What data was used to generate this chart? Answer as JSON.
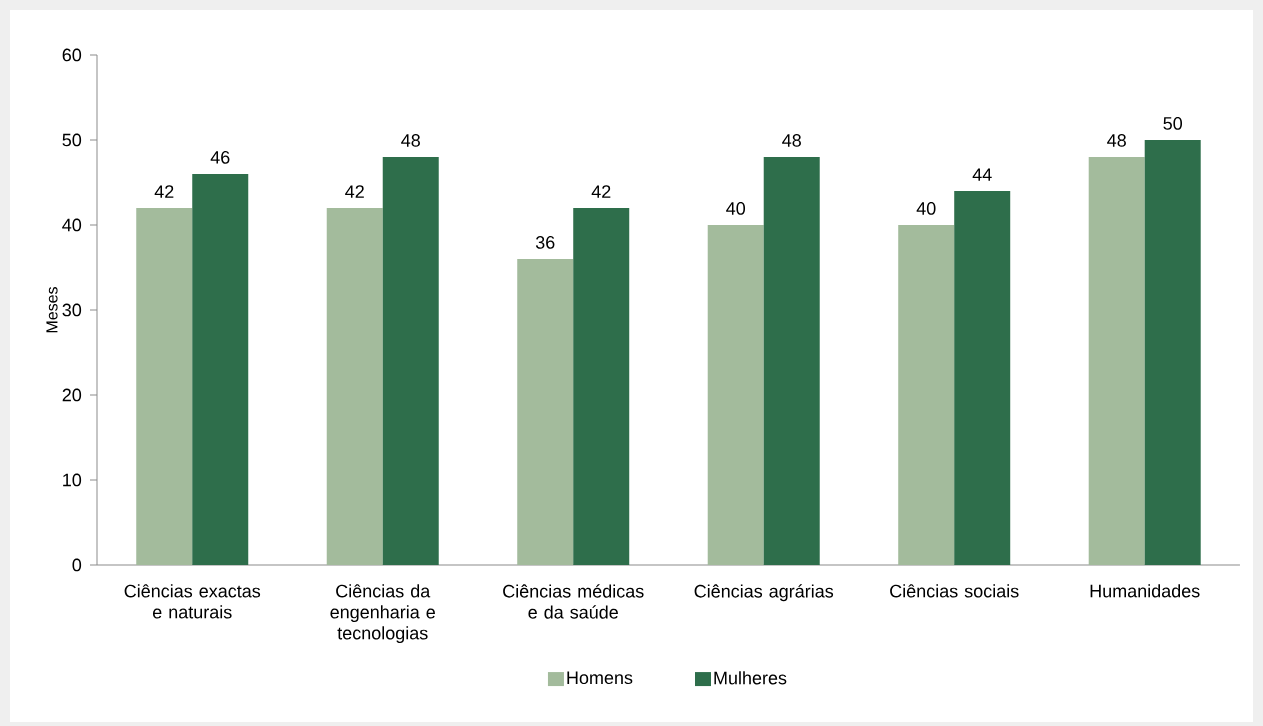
{
  "chart_data": {
    "type": "bar",
    "ylabel": "Meses",
    "categories": [
      "Ciências exactas e naturais",
      "Ciências da engenharia e tecnologias",
      "Ciências médicas e da saúde",
      "Ciências agrárias",
      "Ciências sociais",
      "Humanidades"
    ],
    "series": [
      {
        "name": "Homens",
        "color": "#a3bb9c",
        "values": [
          42,
          42,
          36,
          40,
          40,
          48
        ]
      },
      {
        "name": "Mulheres",
        "color": "#2e6e4b",
        "values": [
          46,
          48,
          42,
          48,
          44,
          50
        ]
      }
    ],
    "ylim": [
      0,
      60
    ],
    "yticks": [
      0,
      10,
      20,
      30,
      40,
      50,
      60
    ],
    "data_labels": true,
    "legend": "bottom"
  }
}
